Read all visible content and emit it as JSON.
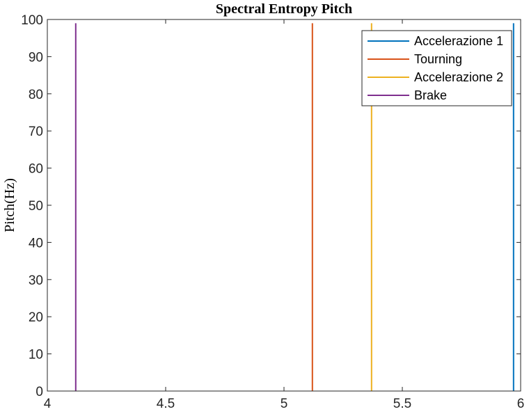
{
  "chart_data": {
    "type": "line",
    "title": "Spectral Entropy Pitch",
    "xlabel": "",
    "ylabel": "Pitch(Hz)",
    "xlim": [
      4,
      6
    ],
    "ylim": [
      0,
      100
    ],
    "x_ticks": [
      "4",
      "4.5",
      "5",
      "5.5",
      "6"
    ],
    "x_tick_values": [
      4,
      4.5,
      5,
      5.5,
      6
    ],
    "y_ticks": [
      "0",
      "10",
      "20",
      "30",
      "40",
      "50",
      "60",
      "70",
      "80",
      "90",
      "100"
    ],
    "y_tick_values": [
      0,
      10,
      20,
      30,
      40,
      50,
      60,
      70,
      80,
      90,
      100
    ],
    "grid": false,
    "legend_position": "top-right",
    "series": [
      {
        "name": "Accelerazione 1",
        "color": "#0072BD",
        "x": [
          5.97,
          5.97
        ],
        "y": [
          0,
          99
        ]
      },
      {
        "name": "Tourning",
        "color": "#D95319",
        "x": [
          5.12,
          5.12
        ],
        "y": [
          0,
          99
        ]
      },
      {
        "name": "Accelerazione 2",
        "color": "#EDB120",
        "x": [
          5.37,
          5.37
        ],
        "y": [
          0,
          99
        ]
      },
      {
        "name": "Brake",
        "color": "#7E2F8E",
        "x": [
          4.12,
          4.12
        ],
        "y": [
          0,
          99
        ]
      }
    ]
  }
}
